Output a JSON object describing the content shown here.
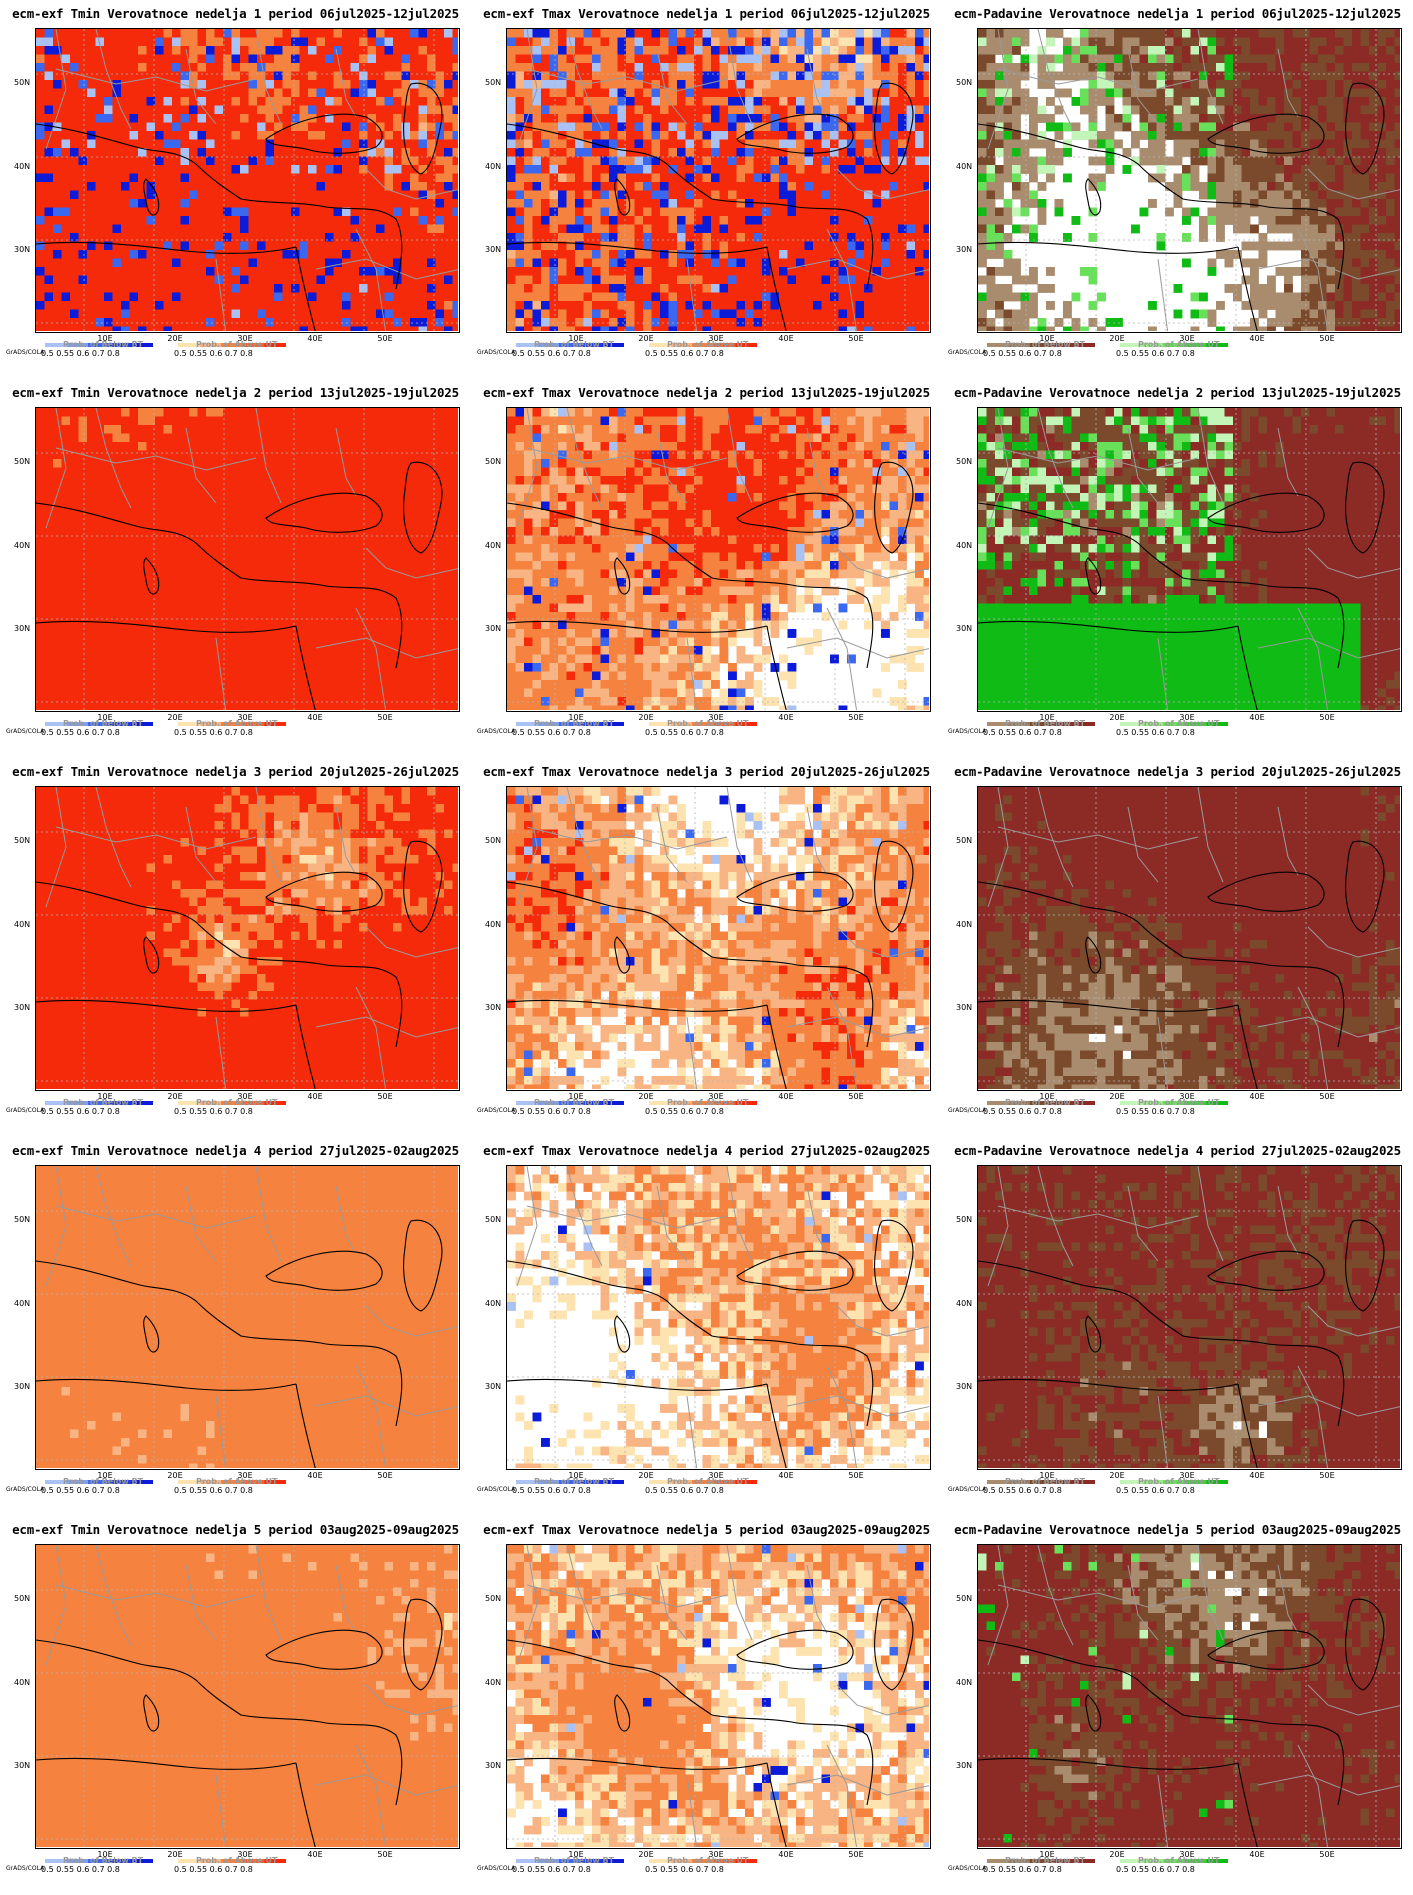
{
  "colors": {
    "above_strong": "#f42a0a",
    "above_mid": "#f6823f",
    "above_light": "#f9b483",
    "above_pale": "#fde3b0",
    "below_strong": "#0b1bd8",
    "below_mid": "#3c68ef",
    "below_light": "#a9c1f3",
    "precip_dry_strong": "#8c2a26",
    "precip_dry_mid": "#7b4a2c",
    "precip_dry_light": "#a98c6e",
    "precip_wet_strong": "#10bb16",
    "precip_wet_mid": "#69e05a",
    "precip_wet_light": "#c3f4b8",
    "border": "#9a9a9a",
    "coast": "#000000"
  },
  "axes": {
    "y_labels": [
      "50N",
      "40N",
      "30N"
    ],
    "x_labels": [
      "10E",
      "20E",
      "30E",
      "40E",
      "50E"
    ]
  },
  "legend": {
    "ticks": "0.5  0.55  0.6   0.7   0.8",
    "below_title": "Prob. of Below BT",
    "above_title": "Prob. of Above UT",
    "grads": "GrADS/COLA"
  },
  "panels": [
    {
      "title": "ecm-exf Tmin Verovatnoce nedelja 1 period 06jul2025-12jul2025",
      "kind": "temp",
      "fill": "above_strong",
      "cover": 0.8,
      "below": 0.15,
      "seed": 11
    },
    {
      "title": "ecm-exf Tmax Verovatnoce nedelja 1 period 06jul2025-12jul2025",
      "kind": "temp",
      "fill": "above_strong",
      "cover": 0.6,
      "below": 0.25,
      "seed": 12
    },
    {
      "title": "ecm-Padavine Verovatnoce nedelja 1 period 06jul2025-12jul2025",
      "kind": "precip",
      "fill": "precip_dry_strong",
      "cover": 0.7,
      "below": 0.15,
      "seed": 13
    },
    {
      "title": "ecm-exf Tmin Verovatnoce nedelja 2 period 13jul2025-19jul2025",
      "kind": "temp",
      "fill": "above_strong",
      "cover": 0.85,
      "below": 0.0,
      "seed": 21
    },
    {
      "title": "ecm-exf Tmax Verovatnoce nedelja 2 period 13jul2025-19jul2025",
      "kind": "temp",
      "fill": "above_strong",
      "cover": 0.5,
      "below": 0.05,
      "seed": 22
    },
    {
      "title": "ecm-Padavine Verovatnoce nedelja 2 period 13jul2025-19jul2025",
      "kind": "precip",
      "fill": "precip_dry_strong",
      "cover": 0.6,
      "below": 0.35,
      "seed": 23
    },
    {
      "title": "ecm-exf Tmin Verovatnoce nedelja 3 period 20jul2025-26jul2025",
      "kind": "temp",
      "fill": "above_strong",
      "cover": 0.85,
      "below": 0.0,
      "seed": 31
    },
    {
      "title": "ecm-exf Tmax Verovatnoce nedelja 3 period 20jul2025-26jul2025",
      "kind": "temp",
      "fill": "above_strong",
      "cover": 0.5,
      "below": 0.02,
      "seed": 32
    },
    {
      "title": "ecm-Padavine Verovatnoce nedelja 3 period 20jul2025-26jul2025",
      "kind": "precip",
      "fill": "precip_dry_strong",
      "cover": 0.75,
      "below": 0.0,
      "seed": 33
    },
    {
      "title": "ecm-exf Tmin Verovatnoce nedelja 4 period 27jul2025-02aug2025",
      "kind": "temp",
      "fill": "above_mid",
      "cover": 0.7,
      "below": 0.0,
      "seed": 41
    },
    {
      "title": "ecm-exf Tmax Verovatnoce nedelja 4 period 27jul2025-02aug2025",
      "kind": "temp",
      "fill": "above_mid",
      "cover": 0.35,
      "below": 0.01,
      "seed": 42
    },
    {
      "title": "ecm-Padavine Verovatnoce nedelja 4 period 27jul2025-02aug2025",
      "kind": "precip",
      "fill": "precip_dry_strong",
      "cover": 0.75,
      "below": 0.0,
      "seed": 43
    },
    {
      "title": "ecm-exf Tmin Verovatnoce nedelja 5 period 03aug2025-09aug2025",
      "kind": "temp",
      "fill": "above_mid",
      "cover": 0.7,
      "below": 0.0,
      "seed": 51
    },
    {
      "title": "ecm-exf Tmax Verovatnoce nedelja 5 period 03aug2025-09aug2025",
      "kind": "temp",
      "fill": "above_mid",
      "cover": 0.4,
      "below": 0.02,
      "seed": 52
    },
    {
      "title": "ecm-Padavine Verovatnoce nedelja 5 period 03aug2025-09aug2025",
      "kind": "precip",
      "fill": "precip_dry_strong",
      "cover": 0.8,
      "below": 0.03,
      "seed": 53
    }
  ]
}
